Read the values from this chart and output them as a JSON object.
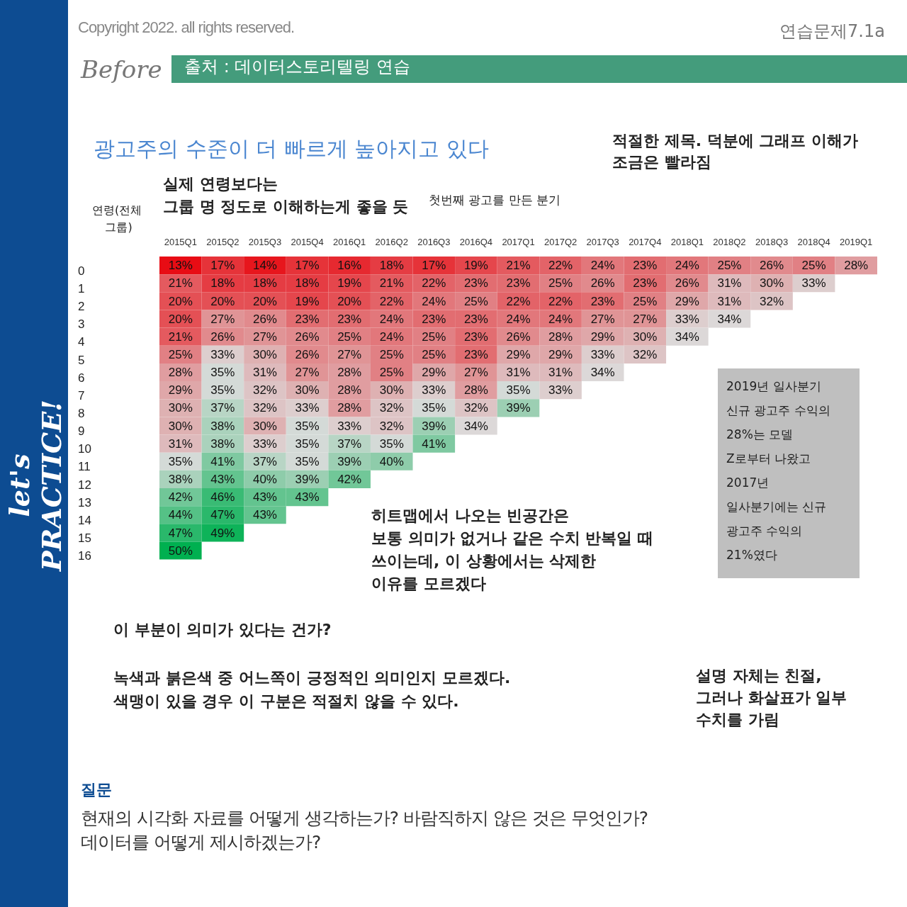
{
  "chart_data": {
    "type": "heatmap",
    "title": "광고주의 수준이 더 빠르게 높아지고 있다",
    "xlabel": "첫번째 광고를 만든 분기",
    "ylabel": "연령(전체 그룹)",
    "categories": [
      "2015Q1",
      "2015Q2",
      "2015Q3",
      "2015Q4",
      "2016Q1",
      "2016Q2",
      "2016Q3",
      "2016Q4",
      "2017Q1",
      "2017Q2",
      "2017Q3",
      "2017Q4",
      "2018Q1",
      "2018Q2",
      "2018Q3",
      "2018Q4",
      "2019Q1"
    ],
    "y_categories": [
      "0",
      "1",
      "2",
      "3",
      "4",
      "5",
      "6",
      "7",
      "8",
      "9",
      "10",
      "11",
      "12",
      "13",
      "14",
      "15",
      "16"
    ],
    "cells": [
      [
        13,
        17,
        14,
        17,
        16,
        18,
        17,
        19,
        21,
        22,
        24,
        23,
        24,
        25,
        26,
        25,
        28
      ],
      [
        21,
        18,
        18,
        18,
        19,
        21,
        22,
        23,
        23,
        25,
        26,
        23,
        26,
        31,
        30,
        33,
        null
      ],
      [
        20,
        20,
        20,
        19,
        20,
        22,
        24,
        25,
        22,
        22,
        23,
        25,
        29,
        31,
        32,
        null,
        null
      ],
      [
        20,
        27,
        26,
        23,
        23,
        24,
        23,
        23,
        24,
        24,
        27,
        27,
        33,
        34,
        null,
        null,
        null
      ],
      [
        21,
        26,
        27,
        26,
        25,
        24,
        25,
        23,
        26,
        28,
        29,
        30,
        34,
        null,
        null,
        null,
        null
      ],
      [
        25,
        33,
        30,
        26,
        27,
        25,
        25,
        23,
        29,
        29,
        33,
        32,
        null,
        null,
        null,
        null,
        null
      ],
      [
        28,
        35,
        31,
        27,
        28,
        25,
        29,
        27,
        31,
        31,
        34,
        null,
        null,
        null,
        null,
        null,
        null
      ],
      [
        29,
        35,
        32,
        30,
        28,
        30,
        33,
        28,
        35,
        33,
        null,
        null,
        null,
        null,
        null,
        null,
        null
      ],
      [
        30,
        37,
        32,
        33,
        28,
        32,
        35,
        32,
        39,
        null,
        null,
        null,
        null,
        null,
        null,
        null,
        null
      ],
      [
        30,
        38,
        30,
        35,
        33,
        32,
        39,
        34,
        null,
        null,
        null,
        null,
        null,
        null,
        null,
        null,
        null
      ],
      [
        31,
        38,
        33,
        35,
        37,
        35,
        41,
        null,
        null,
        null,
        null,
        null,
        null,
        null,
        null,
        null,
        null
      ],
      [
        35,
        41,
        37,
        35,
        39,
        40,
        null,
        null,
        null,
        null,
        null,
        null,
        null,
        null,
        null,
        null,
        null
      ],
      [
        38,
        43,
        40,
        39,
        42,
        null,
        null,
        null,
        null,
        null,
        null,
        null,
        null,
        null,
        null,
        null,
        null
      ],
      [
        42,
        46,
        43,
        43,
        null,
        null,
        null,
        null,
        null,
        null,
        null,
        null,
        null,
        null,
        null,
        null,
        null
      ],
      [
        44,
        47,
        43,
        null,
        null,
        null,
        null,
        null,
        null,
        null,
        null,
        null,
        null,
        null,
        null,
        null,
        null
      ],
      [
        47,
        49,
        null,
        null,
        null,
        null,
        null,
        null,
        null,
        null,
        null,
        null,
        null,
        null,
        null,
        null,
        null
      ],
      [
        50,
        null,
        null,
        null,
        null,
        null,
        null,
        null,
        null,
        null,
        null,
        null,
        null,
        null,
        null,
        null,
        null
      ]
    ],
    "cell_labels": [
      [
        "13%",
        "17%",
        "14%",
        "17%",
        "16%",
        "18%",
        "17%",
        "19%",
        "21%",
        "22%",
        "24%",
        "23%",
        "24%",
        "25%",
        "26%",
        "25%",
        "28%"
      ],
      [
        "21%",
        "18%",
        "18%",
        "18%",
        "19%",
        "21%",
        "22%",
        "23%",
        "23%",
        "25%",
        "26%",
        "23%",
        "26%",
        "31%",
        "30%",
        "33%",
        null
      ],
      [
        "20%",
        "20%",
        "20%",
        "19%",
        "20%",
        "22%",
        "24%",
        "25%",
        "22%",
        "22%",
        "23%",
        "25%",
        "29%",
        "31%",
        "32%",
        null,
        null
      ],
      [
        "20%",
        "27%",
        "26%",
        "23%",
        "23%",
        "24%",
        "23%",
        "23%",
        "24%",
        "24%",
        "27%",
        "27%",
        "33%",
        "34%",
        null,
        null,
        null
      ],
      [
        "21%",
        "26%",
        "27%",
        "26%",
        "25%",
        "24%",
        "25%",
        "23%",
        "26%",
        "28%",
        "29%",
        "30%",
        "34%",
        null,
        null,
        null,
        null
      ],
      [
        "25%",
        "33%",
        "30%",
        "26%",
        "27%",
        "25%",
        "25%",
        "23%",
        "29%",
        "29%",
        "33%",
        "32%",
        null,
        null,
        null,
        null,
        null
      ],
      [
        "28%",
        "35%",
        "31%",
        "27%",
        "28%",
        "25%",
        "29%",
        "27%",
        "31%",
        "31%",
        "34%",
        null,
        null,
        null,
        null,
        null,
        null
      ],
      [
        "29%",
        "35%",
        "32%",
        "30%",
        "28%",
        "30%",
        "33%",
        "28%",
        "35%",
        "33%",
        null,
        null,
        null,
        null,
        null,
        null,
        null
      ],
      [
        "30%",
        "37%",
        "32%",
        "33%",
        "28%",
        "32%",
        "35%",
        "32%",
        "39%",
        null,
        null,
        null,
        null,
        null,
        null,
        null,
        null
      ],
      [
        "30%",
        "38%",
        "30%",
        "35%",
        "33%",
        "32%",
        "39%",
        "34%",
        null,
        null,
        null,
        null,
        null,
        null,
        null,
        null,
        null
      ],
      [
        "31%",
        "38%",
        "33%",
        "35%",
        "37%",
        "35%",
        "41%",
        null,
        null,
        null,
        null,
        null,
        null,
        null,
        null,
        null,
        null
      ],
      [
        "35%",
        "41%",
        "37%",
        "35%",
        "39%",
        "40%",
        null,
        null,
        null,
        null,
        null,
        null,
        null,
        null,
        null,
        null,
        null
      ],
      [
        "38%",
        "43%",
        "40%",
        "39%",
        "42%",
        null,
        null,
        null,
        null,
        null,
        null,
        null,
        null,
        null,
        null,
        null,
        null
      ],
      [
        "42%",
        "46%",
        "43%",
        "43%",
        null,
        null,
        null,
        null,
        null,
        null,
        null,
        null,
        null,
        null,
        null,
        null,
        null
      ],
      [
        "44%",
        "47%",
        "43%",
        null,
        null,
        null,
        null,
        null,
        null,
        null,
        null,
        null,
        null,
        null,
        null,
        null,
        null
      ],
      [
        "47%",
        "49%",
        null,
        null,
        null,
        null,
        null,
        null,
        null,
        null,
        null,
        null,
        null,
        null,
        null,
        null,
        null
      ],
      [
        "50%",
        null,
        null,
        null,
        null,
        null,
        null,
        null,
        null,
        null,
        null,
        null,
        null,
        null,
        null,
        null,
        null
      ]
    ],
    "annotations": [
      "Copyright 2022. all rights reserved.",
      "연습문제7.1a",
      "Before",
      "출처 : 데이터스토리텔링 연습",
      "let's PRACTICE!",
      "적절한 제목. 덕분에 그래프 이해가\n조금은 빨라짐",
      "실제 연령보다는\n그룹 명 정도로 이해하는게 좋을 듯",
      "2019년 일사분기\n신규 광고주 수익의\n28%는 모델\nZ로부터 나왔고\n2017년\n일사분기에는 신규\n광고주 수익의\n21%였다",
      "히트맵에서 나오는 빈공간은\n보통 의미가 없거나 같은 수치 반복일 때\n쓰이는데, 이 상황에서는 삭제한\n이유를 모르겠다",
      "이 부분이 의미가 있다는 건가?",
      "녹색과 붉은색 중 어느쪽이 긍정적인 의미인지 모르겠다.\n색맹이 있을 경우 이 구분은 적절치 않을 수 있다.",
      "설명 자체는 친절,\n그러나 화살표가 일부\n수치를 가림",
      "질문",
      "현재의 시각화 자료를 어떻게 생각하는가? 바람직하지 않은 것은 무엇인가?\n데이터를 어떻게 제시하겠는가?"
    ]
  }
}
